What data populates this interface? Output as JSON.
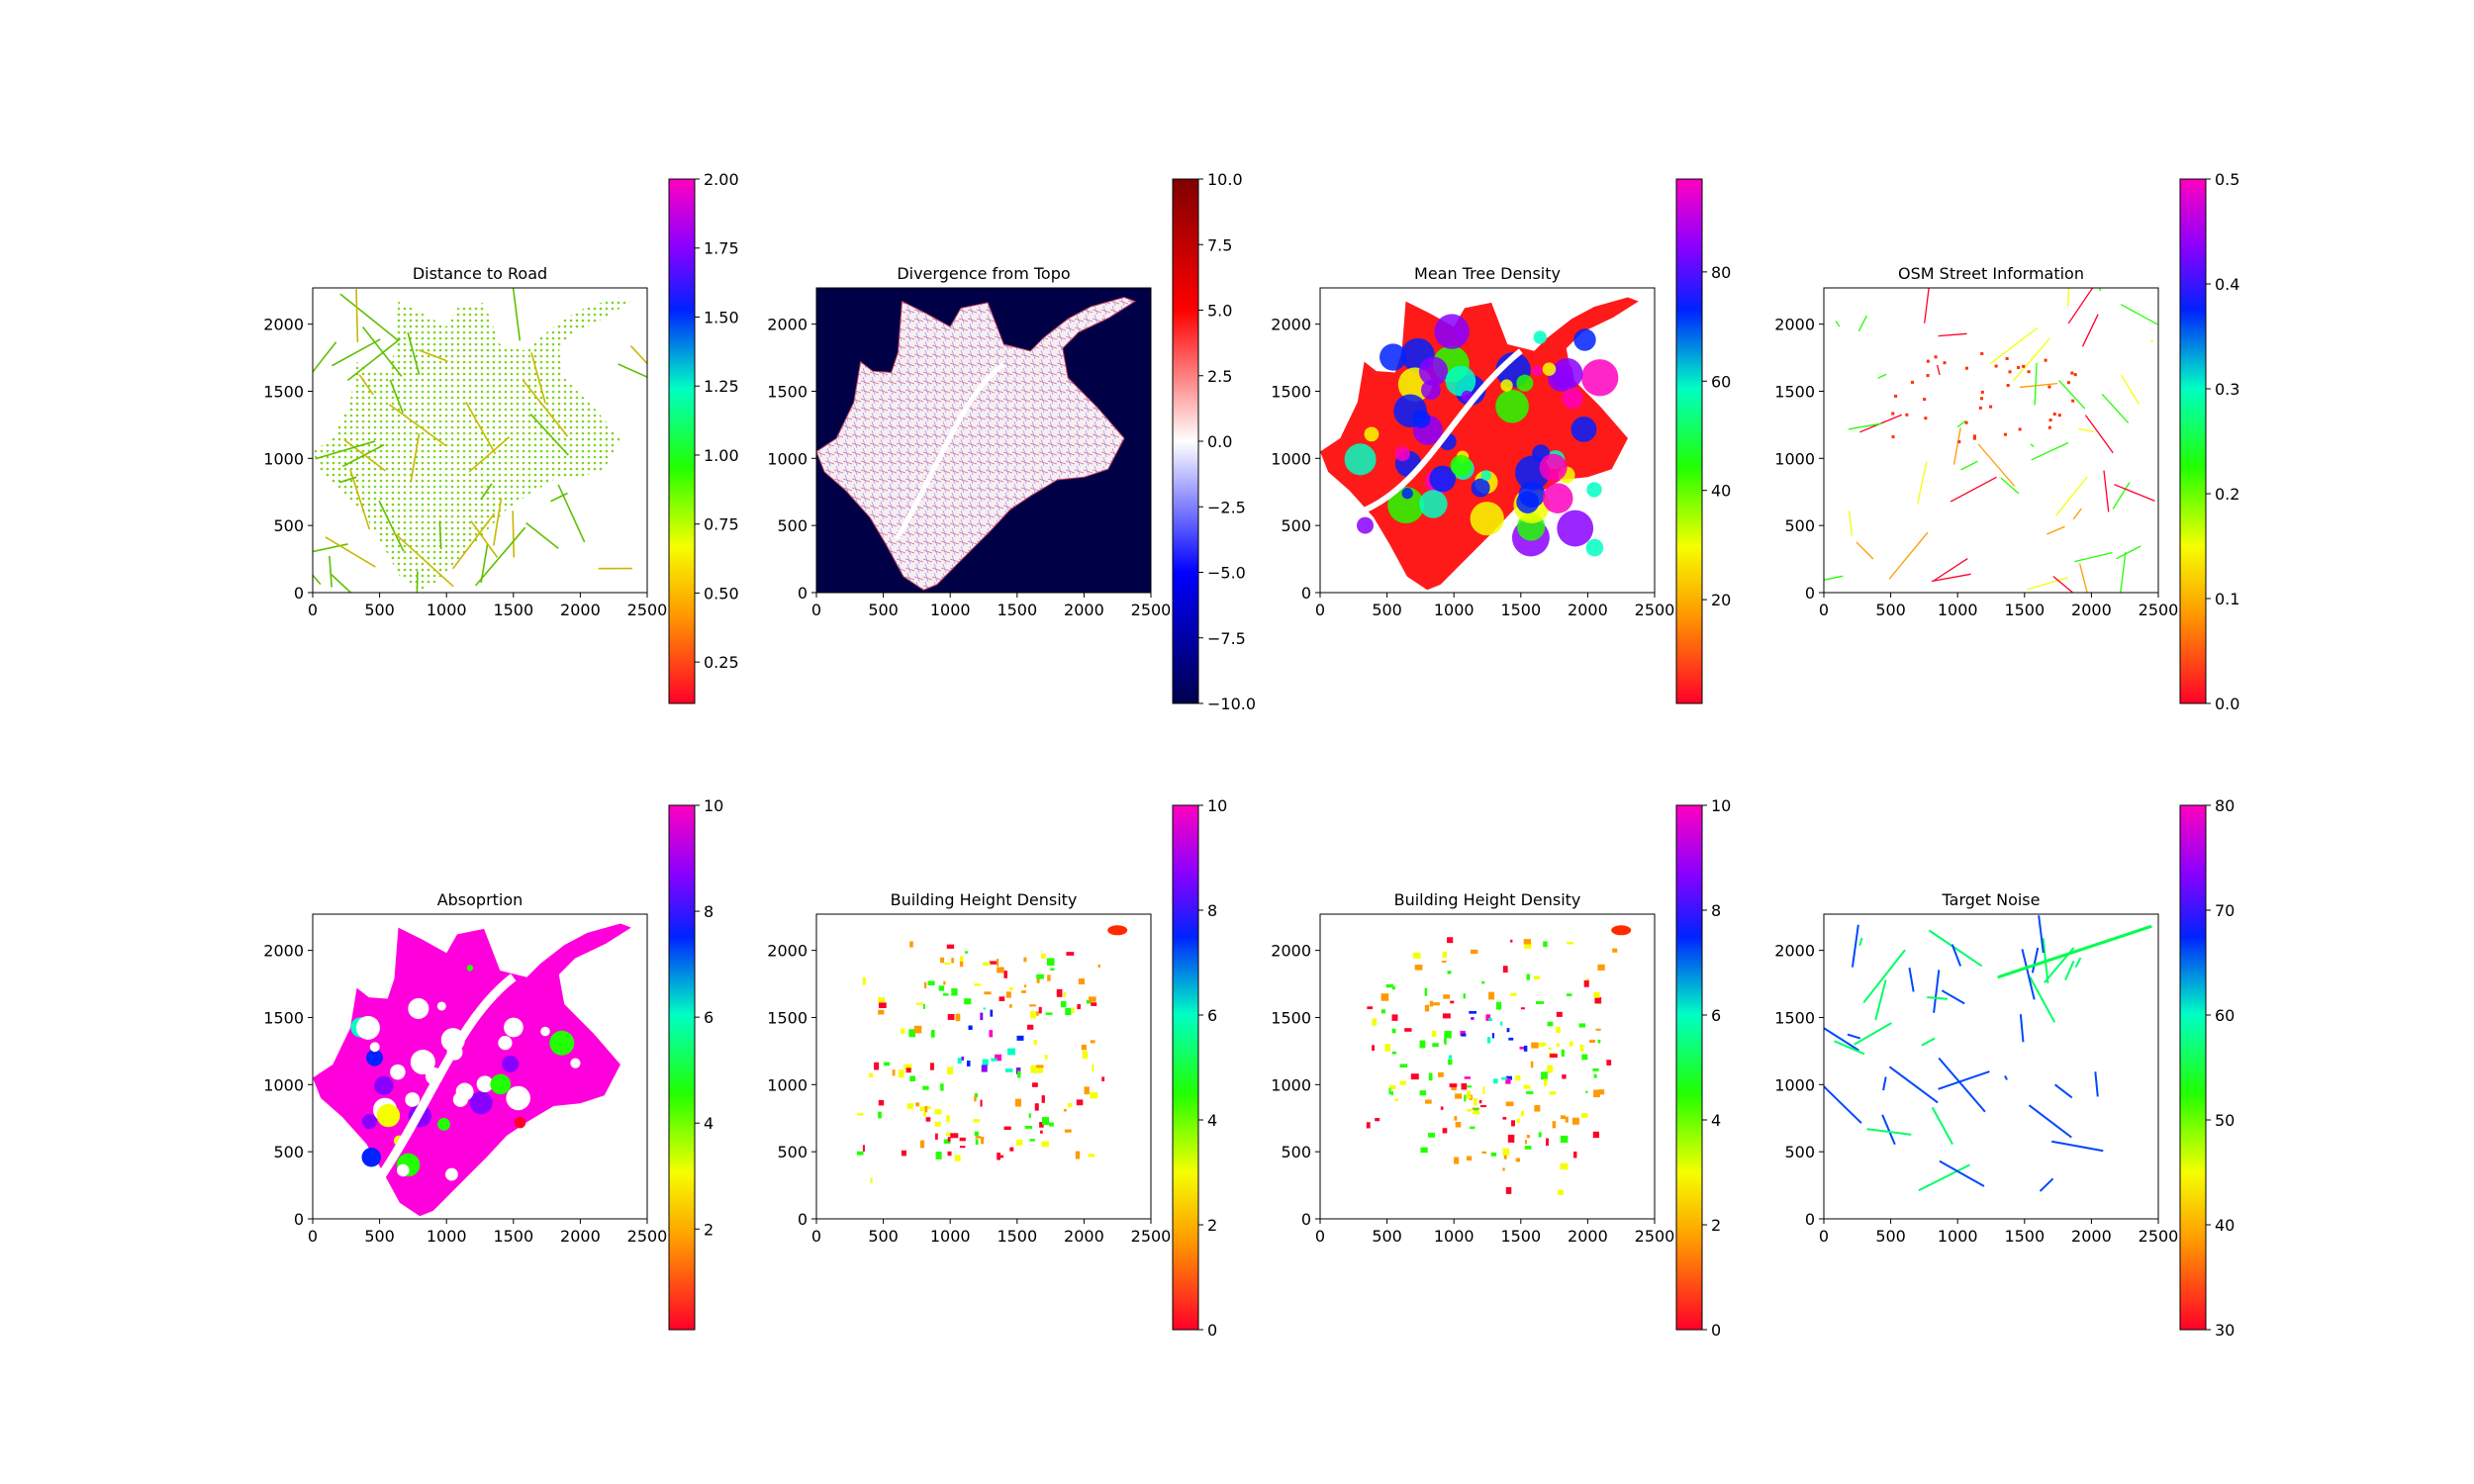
{
  "figure": {
    "layout": "2 rows x 4 columns of map panels, each with its own colorbar"
  },
  "panels": [
    {
      "title": "Distance to Road",
      "map_shape": "roads",
      "background": "#ffffff",
      "colormap": "gist_rainbow",
      "colorbar_ticks": [
        "0.25",
        "0.50",
        "0.75",
        "1.00",
        "1.25",
        "1.50",
        "1.75",
        "2.00"
      ],
      "colorbar_tick_values": [
        0.25,
        0.5,
        0.75,
        1.0,
        1.25,
        1.5,
        1.75,
        2.0
      ],
      "colorbar_range": [
        0.1,
        2.0
      ]
    },
    {
      "title": "Divergence from Topo",
      "map_shape": "divergence",
      "background": "#000046",
      "colormap": "seismic",
      "colorbar_ticks": [
        "−10.0",
        "−7.5",
        "−5.0",
        "−2.5",
        "0.0",
        "2.5",
        "5.0",
        "7.5",
        "10.0"
      ],
      "colorbar_tick_values": [
        -10,
        -7.5,
        -5,
        -2.5,
        0,
        2.5,
        5,
        7.5,
        10
      ],
      "colorbar_range": [
        -10,
        10
      ]
    },
    {
      "title": "Mean Tree Density",
      "map_shape": "treedensity",
      "background": "#ffffff",
      "colormap": "gist_rainbow",
      "colorbar_ticks": [
        "20",
        "40",
        "60",
        "80"
      ],
      "colorbar_tick_values": [
        20,
        40,
        60,
        80
      ],
      "colorbar_range": [
        1,
        97
      ]
    },
    {
      "title": "OSM Street Information",
      "map_shape": "osm",
      "background": "#ffffff",
      "colormap": "gist_rainbow",
      "colorbar_ticks": [
        "0.0",
        "0.1",
        "0.2",
        "0.3",
        "0.4",
        "0.5"
      ],
      "colorbar_tick_values": [
        0,
        0.1,
        0.2,
        0.3,
        0.4,
        0.5
      ],
      "colorbar_range": [
        0,
        0.5
      ]
    },
    {
      "title": "Absoprtion",
      "map_shape": "absorption",
      "background": "#ffffff",
      "colormap": "gist_rainbow",
      "colorbar_ticks": [
        "2",
        "4",
        "6",
        "8",
        "10"
      ],
      "colorbar_tick_values": [
        2,
        4,
        6,
        8,
        10
      ],
      "colorbar_range": [
        0.1,
        10
      ]
    },
    {
      "title": "Building Height Density",
      "map_shape": "buildings",
      "background": "#ffffff",
      "colormap": "gist_rainbow",
      "colorbar_ticks": [
        "0",
        "2",
        "4",
        "6",
        "8",
        "10"
      ],
      "colorbar_tick_values": [
        0,
        2,
        4,
        6,
        8,
        10
      ],
      "colorbar_range": [
        0,
        10
      ]
    },
    {
      "title": "Building Height Density",
      "map_shape": "buildings",
      "background": "#ffffff",
      "colormap": "gist_rainbow",
      "colorbar_ticks": [
        "0",
        "2",
        "4",
        "6",
        "8",
        "10"
      ],
      "colorbar_tick_values": [
        0,
        2,
        4,
        6,
        8,
        10
      ],
      "colorbar_range": [
        0,
        10
      ]
    },
    {
      "title": "Target Noise",
      "map_shape": "noise",
      "background": "#ffffff",
      "colormap": "gist_rainbow",
      "colorbar_ticks": [
        "30",
        "40",
        "50",
        "60",
        "70",
        "80"
      ],
      "colorbar_tick_values": [
        30,
        40,
        50,
        60,
        70,
        80
      ],
      "colorbar_range": [
        30,
        80
      ]
    }
  ],
  "chart_data": [
    {
      "type": "heatmap",
      "title": "Distance to Road",
      "x_ticks": [
        "0",
        "500",
        "1000",
        "1500",
        "2000",
        "2500"
      ],
      "y_ticks": [
        "0",
        "500",
        "1000",
        "1500",
        "2000"
      ],
      "xlim": [
        0,
        2500
      ],
      "ylim": [
        0,
        2270
      ],
      "colorbar_range": [
        0.1,
        2.0
      ]
    },
    {
      "type": "heatmap",
      "title": "Divergence from Topo",
      "x_ticks": [
        "0",
        "500",
        "1000",
        "1500",
        "2000",
        "2500"
      ],
      "y_ticks": [
        "0",
        "500",
        "1000",
        "1500",
        "2000"
      ],
      "xlim": [
        0,
        2500
      ],
      "ylim": [
        0,
        2270
      ],
      "colorbar_range": [
        -10,
        10
      ]
    },
    {
      "type": "heatmap",
      "title": "Mean Tree Density",
      "x_ticks": [
        "0",
        "500",
        "1000",
        "1500",
        "2000",
        "2500"
      ],
      "y_ticks": [
        "0",
        "500",
        "1000",
        "1500",
        "2000"
      ],
      "xlim": [
        0,
        2500
      ],
      "ylim": [
        0,
        2270
      ],
      "colorbar_range": [
        1,
        97
      ]
    },
    {
      "type": "heatmap",
      "title": "OSM Street Information",
      "x_ticks": [
        "0",
        "500",
        "1000",
        "1500",
        "2000",
        "2500"
      ],
      "y_ticks": [
        "0",
        "500",
        "1000",
        "1500",
        "2000"
      ],
      "xlim": [
        0,
        2500
      ],
      "ylim": [
        0,
        2270
      ],
      "colorbar_range": [
        0,
        0.5
      ]
    },
    {
      "type": "heatmap",
      "title": "Absoprtion",
      "x_ticks": [
        "0",
        "500",
        "1000",
        "1500",
        "2000",
        "2500"
      ],
      "y_ticks": [
        "0",
        "500",
        "1000",
        "1500",
        "2000"
      ],
      "xlim": [
        0,
        2500
      ],
      "ylim": [
        0,
        2270
      ],
      "colorbar_range": [
        0.1,
        10
      ]
    },
    {
      "type": "heatmap",
      "title": "Building Height Density",
      "x_ticks": [
        "0",
        "500",
        "1000",
        "1500",
        "2000",
        "2500"
      ],
      "y_ticks": [
        "0",
        "500",
        "1000",
        "1500",
        "2000"
      ],
      "xlim": [
        0,
        2500
      ],
      "ylim": [
        0,
        2270
      ],
      "colorbar_range": [
        0,
        10
      ]
    },
    {
      "type": "heatmap",
      "title": "Building Height Density",
      "x_ticks": [
        "0",
        "500",
        "1000",
        "1500",
        "2000",
        "2500"
      ],
      "y_ticks": [
        "0",
        "500",
        "1000",
        "1500",
        "2000"
      ],
      "xlim": [
        0,
        2500
      ],
      "ylim": [
        0,
        2270
      ],
      "colorbar_range": [
        0,
        10
      ]
    },
    {
      "type": "heatmap",
      "title": "Target Noise",
      "x_ticks": [
        "0",
        "500",
        "1000",
        "1500",
        "2000",
        "2500"
      ],
      "y_ticks": [
        "0",
        "500",
        "1000",
        "1500",
        "2000"
      ],
      "xlim": [
        0,
        2500
      ],
      "ylim": [
        0,
        2270
      ],
      "colorbar_range": [
        30,
        80
      ]
    }
  ]
}
